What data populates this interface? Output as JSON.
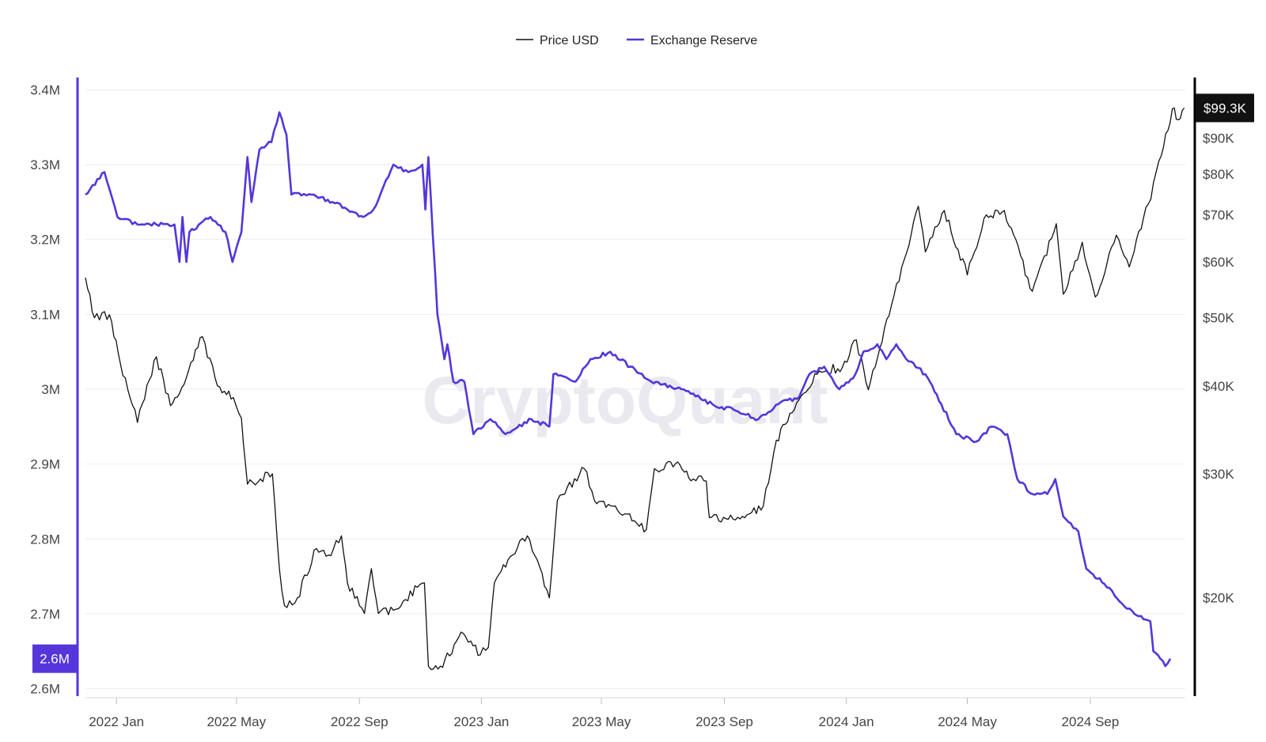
{
  "chart_data": {
    "type": "line",
    "title": "",
    "watermark": "CryptoQuant",
    "legend_position": "top-center",
    "grid": true,
    "x_ticks": [
      "2022 Jan",
      "2022 May",
      "2022 Sep",
      "2023 Jan",
      "2023 May",
      "2023 Sep",
      "2024 Jan",
      "2024 May",
      "2024 Sep"
    ],
    "x_range": [
      "2021-12-01",
      "2024-12-05"
    ],
    "left_axis": {
      "ticks": [
        "3.4M",
        "3.3M",
        "3.2M",
        "3.1M",
        "3M",
        "2.9M",
        "2.8M",
        "2.7M",
        "2.6M"
      ],
      "tick_values": [
        3.4,
        3.3,
        3.2,
        3.1,
        3.0,
        2.9,
        2.8,
        2.7,
        2.6
      ],
      "range": [
        2.59,
        3.41
      ],
      "unit": "M",
      "color": "#5536da",
      "current_label": "2.6M",
      "current_value": 2.64
    },
    "right_axis": {
      "scale": "log",
      "ticks": [
        "$90K",
        "$80K",
        "$70K",
        "$60K",
        "$50K",
        "$40K",
        "$30K",
        "$20K"
      ],
      "tick_values": [
        90,
        80,
        70,
        60,
        50,
        40,
        30,
        20
      ],
      "range": [
        14.5,
        108
      ],
      "unit": "$K",
      "color": "#000000",
      "current_label": "$99.3K",
      "current_value": 99.3
    },
    "series": [
      {
        "name": "Price USD",
        "axis": "right",
        "color": "#111111",
        "points": [
          [
            "2021-12-01",
            57.0
          ],
          [
            "2021-12-10",
            50.0
          ],
          [
            "2021-12-25",
            50.5
          ],
          [
            "2022-01-05",
            43.0
          ],
          [
            "2022-01-22",
            35.5
          ],
          [
            "2022-02-10",
            44.0
          ],
          [
            "2022-02-24",
            37.5
          ],
          [
            "2022-03-05",
            39.0
          ],
          [
            "2022-03-28",
            47.0
          ],
          [
            "2022-04-12",
            40.0
          ],
          [
            "2022-04-28",
            38.5
          ],
          [
            "2022-05-06",
            36.0
          ],
          [
            "2022-05-12",
            29.0
          ],
          [
            "2022-05-25",
            29.5
          ],
          [
            "2022-06-06",
            30.0
          ],
          [
            "2022-06-13",
            22.0
          ],
          [
            "2022-06-18",
            19.5
          ],
          [
            "2022-07-01",
            20.0
          ],
          [
            "2022-07-20",
            23.5
          ],
          [
            "2022-08-01",
            23.0
          ],
          [
            "2022-08-14",
            24.5
          ],
          [
            "2022-08-20",
            21.0
          ],
          [
            "2022-09-06",
            19.0
          ],
          [
            "2022-09-13",
            22.0
          ],
          [
            "2022-09-20",
            19.0
          ],
          [
            "2022-10-10",
            19.3
          ],
          [
            "2022-10-29",
            20.7
          ],
          [
            "2022-11-05",
            21.0
          ],
          [
            "2022-11-09",
            16.0
          ],
          [
            "2022-11-21",
            16.0
          ],
          [
            "2022-12-14",
            17.8
          ],
          [
            "2022-12-31",
            16.6
          ],
          [
            "2023-01-08",
            17.0
          ],
          [
            "2023-01-14",
            21.0
          ],
          [
            "2023-02-01",
            23.0
          ],
          [
            "2023-02-16",
            24.5
          ],
          [
            "2023-03-10",
            20.0
          ],
          [
            "2023-03-18",
            27.5
          ],
          [
            "2023-04-14",
            30.5
          ],
          [
            "2023-04-24",
            27.5
          ],
          [
            "2023-05-15",
            27.0
          ],
          [
            "2023-06-15",
            25.0
          ],
          [
            "2023-06-23",
            30.5
          ],
          [
            "2023-07-14",
            31.0
          ],
          [
            "2023-08-01",
            29.5
          ],
          [
            "2023-08-14",
            29.3
          ],
          [
            "2023-08-17",
            26.0
          ],
          [
            "2023-09-12",
            25.8
          ],
          [
            "2023-10-10",
            27.0
          ],
          [
            "2023-10-23",
            33.5
          ],
          [
            "2023-11-10",
            37.0
          ],
          [
            "2023-12-05",
            42.0
          ],
          [
            "2023-12-28",
            42.5
          ],
          [
            "2024-01-11",
            46.5
          ],
          [
            "2024-01-23",
            39.5
          ],
          [
            "2024-02-15",
            52.0
          ],
          [
            "2024-02-28",
            60.5
          ],
          [
            "2024-03-13",
            72.0
          ],
          [
            "2024-03-20",
            62.0
          ],
          [
            "2024-04-08",
            71.0
          ],
          [
            "2024-05-01",
            57.5
          ],
          [
            "2024-05-20",
            70.0
          ],
          [
            "2024-06-07",
            71.0
          ],
          [
            "2024-07-05",
            54.5
          ],
          [
            "2024-07-29",
            68.0
          ],
          [
            "2024-08-05",
            54.0
          ],
          [
            "2024-08-24",
            64.0
          ],
          [
            "2024-09-06",
            53.5
          ],
          [
            "2024-09-27",
            65.5
          ],
          [
            "2024-10-10",
            59.0
          ],
          [
            "2024-10-29",
            72.5
          ],
          [
            "2024-11-11",
            85.0
          ],
          [
            "2024-11-22",
            99.0
          ],
          [
            "2024-11-28",
            95.5
          ],
          [
            "2024-12-04",
            99.3
          ]
        ]
      },
      {
        "name": "Exchange Reserve",
        "axis": "left",
        "color": "#5536da",
        "points": [
          [
            "2021-12-01",
            3.26
          ],
          [
            "2021-12-20",
            3.29
          ],
          [
            "2022-01-02",
            3.23
          ],
          [
            "2022-01-22",
            3.22
          ],
          [
            "2022-02-10",
            3.22
          ],
          [
            "2022-02-28",
            3.22
          ],
          [
            "2022-03-05",
            3.17
          ],
          [
            "2022-03-08",
            3.23
          ],
          [
            "2022-03-12",
            3.17
          ],
          [
            "2022-03-15",
            3.21
          ],
          [
            "2022-04-05",
            3.23
          ],
          [
            "2022-04-20",
            3.21
          ],
          [
            "2022-04-27",
            3.17
          ],
          [
            "2022-05-06",
            3.21
          ],
          [
            "2022-05-12",
            3.31
          ],
          [
            "2022-05-16",
            3.25
          ],
          [
            "2022-05-24",
            3.32
          ],
          [
            "2022-06-05",
            3.33
          ],
          [
            "2022-06-13",
            3.37
          ],
          [
            "2022-06-20",
            3.34
          ],
          [
            "2022-06-25",
            3.26
          ],
          [
            "2022-07-15",
            3.26
          ],
          [
            "2022-08-05",
            3.25
          ],
          [
            "2022-08-20",
            3.24
          ],
          [
            "2022-09-05",
            3.23
          ],
          [
            "2022-09-15",
            3.24
          ],
          [
            "2022-10-05",
            3.3
          ],
          [
            "2022-10-20",
            3.29
          ],
          [
            "2022-11-03",
            3.3
          ],
          [
            "2022-11-06",
            3.24
          ],
          [
            "2022-11-09",
            3.31
          ],
          [
            "2022-11-18",
            3.1
          ],
          [
            "2022-11-25",
            3.04
          ],
          [
            "2022-11-28",
            3.06
          ],
          [
            "2022-12-04",
            3.01
          ],
          [
            "2022-12-15",
            3.01
          ],
          [
            "2022-12-24",
            2.94
          ],
          [
            "2023-01-10",
            2.96
          ],
          [
            "2023-01-25",
            2.94
          ],
          [
            "2023-02-20",
            2.96
          ],
          [
            "2023-03-10",
            2.95
          ],
          [
            "2023-03-14",
            3.02
          ],
          [
            "2023-04-05",
            3.01
          ],
          [
            "2023-04-20",
            3.04
          ],
          [
            "2023-05-10",
            3.05
          ],
          [
            "2023-05-30",
            3.03
          ],
          [
            "2023-06-20",
            3.01
          ],
          [
            "2023-07-20",
            3.0
          ],
          [
            "2023-08-20",
            2.98
          ],
          [
            "2023-09-15",
            2.97
          ],
          [
            "2023-10-05",
            2.96
          ],
          [
            "2023-10-25",
            2.98
          ],
          [
            "2023-11-15",
            2.99
          ],
          [
            "2023-11-25",
            3.02
          ],
          [
            "2023-12-10",
            3.03
          ],
          [
            "2023-12-25",
            3.0
          ],
          [
            "2024-01-10",
            3.02
          ],
          [
            "2024-01-18",
            3.05
          ],
          [
            "2024-02-01",
            3.06
          ],
          [
            "2024-02-10",
            3.04
          ],
          [
            "2024-02-20",
            3.06
          ],
          [
            "2024-03-01",
            3.04
          ],
          [
            "2024-03-20",
            3.02
          ],
          [
            "2024-04-05",
            2.98
          ],
          [
            "2024-04-20",
            2.94
          ],
          [
            "2024-05-10",
            2.93
          ],
          [
            "2024-05-25",
            2.95
          ],
          [
            "2024-06-10",
            2.94
          ],
          [
            "2024-06-20",
            2.88
          ],
          [
            "2024-07-05",
            2.86
          ],
          [
            "2024-07-20",
            2.86
          ],
          [
            "2024-07-28",
            2.88
          ],
          [
            "2024-08-05",
            2.83
          ],
          [
            "2024-08-20",
            2.81
          ],
          [
            "2024-08-28",
            2.76
          ],
          [
            "2024-09-15",
            2.74
          ],
          [
            "2024-09-28",
            2.72
          ],
          [
            "2024-10-15",
            2.7
          ],
          [
            "2024-10-31",
            2.69
          ],
          [
            "2024-11-03",
            2.65
          ],
          [
            "2024-11-10",
            2.64
          ],
          [
            "2024-11-15",
            2.63
          ],
          [
            "2024-11-20",
            2.64
          ]
        ]
      }
    ]
  }
}
